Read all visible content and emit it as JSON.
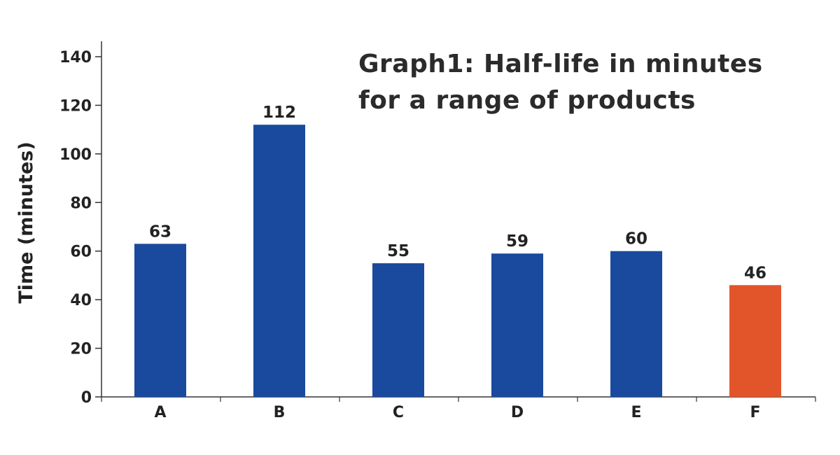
{
  "chart_data": {
    "type": "bar",
    "title_line1": "Graph1: Half-life in minutes",
    "title_line2": "for a range of products",
    "xlabel": "",
    "ylabel": "Time (minutes)",
    "categories": [
      "A",
      "B",
      "C",
      "D",
      "E",
      "F"
    ],
    "values": [
      63,
      112,
      55,
      59,
      60,
      46
    ],
    "ylim": [
      0,
      140
    ],
    "yticks": [
      0,
      20,
      40,
      60,
      80,
      100,
      120,
      140
    ],
    "grid": false,
    "legend": "none",
    "colors": {
      "bar": "#1a4a9e",
      "highlight_bar": "#e2552a",
      "highlight_label": "#e2552a",
      "axis": "#333333",
      "label": "#222222"
    },
    "highlight_index": 5
  }
}
